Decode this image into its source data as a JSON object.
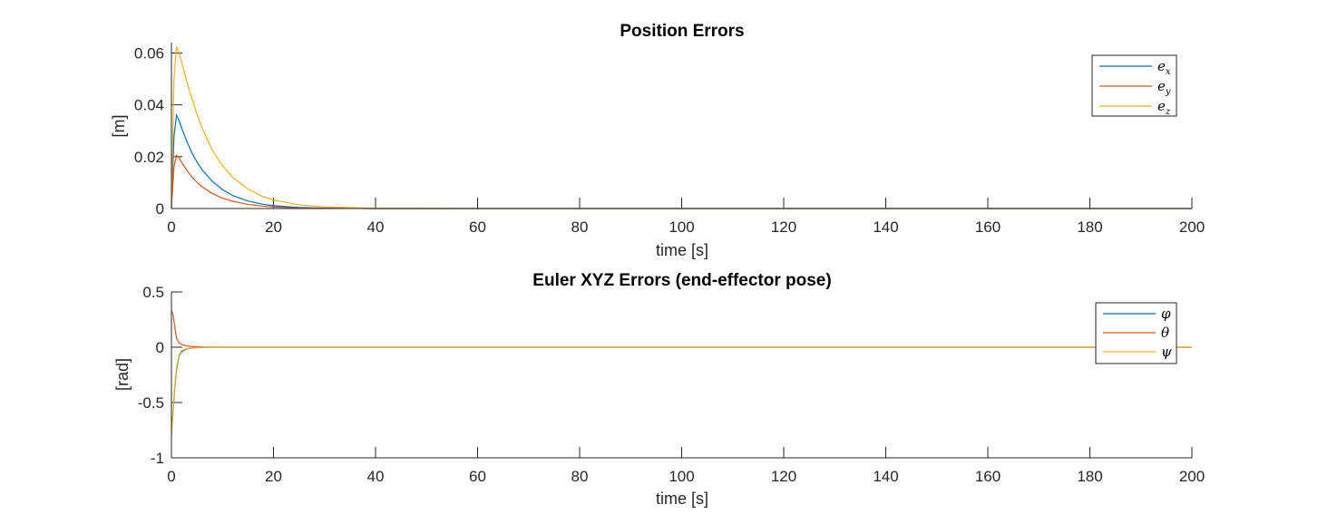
{
  "chart_data": [
    {
      "type": "line",
      "title": "Position Errors",
      "xlabel": "time [s]",
      "ylabel": "[m]",
      "xlim": [
        0,
        200
      ],
      "ylim": [
        0,
        0.064
      ],
      "xticks": [
        0,
        20,
        40,
        60,
        80,
        100,
        120,
        140,
        160,
        180,
        200
      ],
      "xtick_labels": [
        "0",
        "20",
        "40",
        "60",
        "80",
        "100",
        "120",
        "140",
        "160",
        "180",
        "200"
      ],
      "yticks": [
        0,
        0.02,
        0.04,
        0.06
      ],
      "ytick_labels": [
        "0",
        "0.02",
        "0.04",
        "0.06"
      ],
      "grid": false,
      "legend_position": "top-right",
      "series": [
        {
          "legend_base": "e",
          "legend_sub": "x",
          "color": "#0072BD",
          "x": [
            0,
            0.5,
            1,
            1.5,
            2,
            3,
            4,
            5,
            6,
            8,
            10,
            12,
            15,
            18,
            20,
            25,
            30,
            40,
            60,
            100,
            150,
            200
          ],
          "y": [
            0,
            0.028,
            0.036,
            0.034,
            0.031,
            0.026,
            0.0215,
            0.018,
            0.015,
            0.0105,
            0.0073,
            0.005,
            0.0029,
            0.0016,
            0.0011,
            0.0004,
            0.00015,
            0,
            0,
            0,
            0,
            0
          ]
        },
        {
          "legend_base": "e",
          "legend_sub": "y",
          "color": "#D95319",
          "x": [
            0,
            0.5,
            1,
            1.5,
            2,
            3,
            4,
            5,
            6,
            8,
            10,
            12,
            15,
            18,
            20,
            25,
            30,
            40,
            60,
            100,
            150,
            200
          ],
          "y": [
            0,
            0.016,
            0.0205,
            0.0195,
            0.0178,
            0.0148,
            0.0122,
            0.0101,
            0.0084,
            0.0058,
            0.004,
            0.0028,
            0.0016,
            0.0009,
            0.0006,
            0.0002,
            0.0001,
            0,
            0,
            0,
            0,
            0
          ]
        },
        {
          "legend_base": "e",
          "legend_sub": "z",
          "color": "#EDB120",
          "x": [
            0,
            0.5,
            1,
            1.5,
            2,
            3,
            4,
            5,
            6,
            8,
            10,
            12,
            15,
            18,
            20,
            25,
            30,
            40,
            60,
            100,
            150,
            200
          ],
          "y": [
            0,
            0.05,
            0.0625,
            0.06,
            0.0565,
            0.049,
            0.0425,
            0.0365,
            0.031,
            0.0225,
            0.0165,
            0.012,
            0.0075,
            0.0045,
            0.0033,
            0.0014,
            0.0006,
            0.0001,
            0,
            0,
            0,
            0
          ]
        }
      ]
    },
    {
      "type": "line",
      "title": "Euler XYZ Errors (end-effector pose)",
      "xlabel": "time [s]",
      "ylabel": "[rad]",
      "xlim": [
        0,
        200
      ],
      "ylim": [
        -1,
        0.5
      ],
      "xticks": [
        0,
        20,
        40,
        60,
        80,
        100,
        120,
        140,
        160,
        180,
        200
      ],
      "xtick_labels": [
        "0",
        "20",
        "40",
        "60",
        "80",
        "100",
        "120",
        "140",
        "160",
        "180",
        "200"
      ],
      "yticks": [
        -1,
        -0.5,
        0,
        0.5
      ],
      "ytick_labels": [
        "-1",
        "-0.5",
        "0",
        "0.5"
      ],
      "grid": false,
      "legend_position": "top-right",
      "series": [
        {
          "legend_base": "φ",
          "legend_sub": "",
          "color": "#0072BD",
          "x": [
            0,
            0.3,
            0.6,
            1,
            1.5,
            2,
            3,
            4,
            6,
            8,
            10,
            15,
            200
          ],
          "y": [
            -0.76,
            -0.6,
            -0.4,
            -0.2,
            -0.08,
            -0.04,
            -0.015,
            -0.006,
            -0.002,
            0,
            0,
            0,
            0
          ]
        },
        {
          "legend_base": "θ",
          "legend_sub": "",
          "color": "#D95319",
          "x": [
            0,
            0.3,
            0.6,
            1,
            1.5,
            2,
            3,
            4,
            6,
            8,
            10,
            15,
            200
          ],
          "y": [
            0.33,
            0.3,
            0.2,
            0.08,
            0.04,
            0.025,
            0.012,
            0.006,
            0.002,
            0.001,
            0,
            0,
            0
          ]
        },
        {
          "legend_base": "ψ",
          "legend_sub": "",
          "color": "#EDB120",
          "x": [
            0,
            0.3,
            0.6,
            1,
            1.5,
            2,
            3,
            4,
            6,
            8,
            10,
            15,
            200
          ],
          "y": [
            -0.8,
            -0.6,
            -0.38,
            -0.18,
            -0.07,
            -0.03,
            -0.012,
            -0.005,
            -0.002,
            0,
            0,
            0,
            0
          ]
        }
      ]
    }
  ]
}
